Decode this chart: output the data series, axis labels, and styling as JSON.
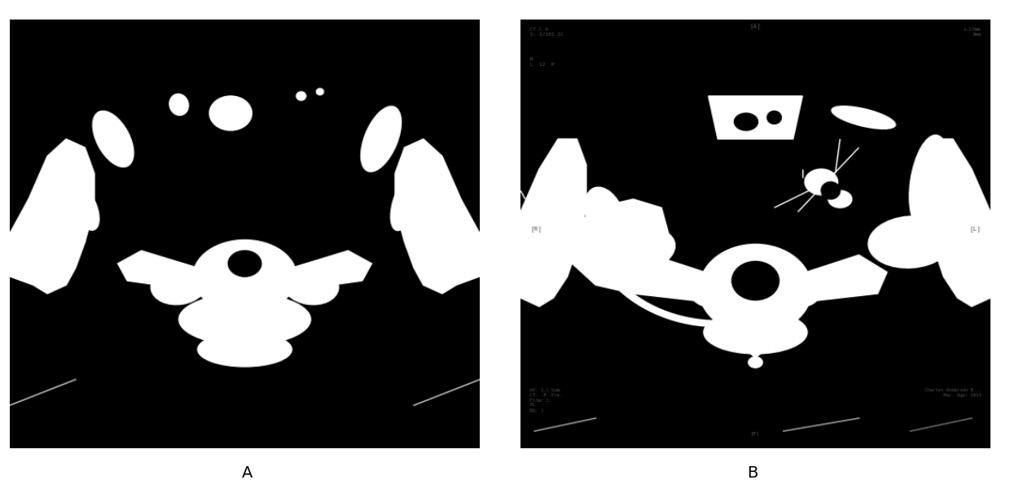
{
  "figure_width": 12.4,
  "figure_height": 6.06,
  "dpi": 100,
  "background_color": "#ffffff",
  "label_A": "A",
  "label_B": "B",
  "label_fontsize": 14,
  "panel_bg": "#000000",
  "white": "#ffffff",
  "gray_text": "#606060"
}
